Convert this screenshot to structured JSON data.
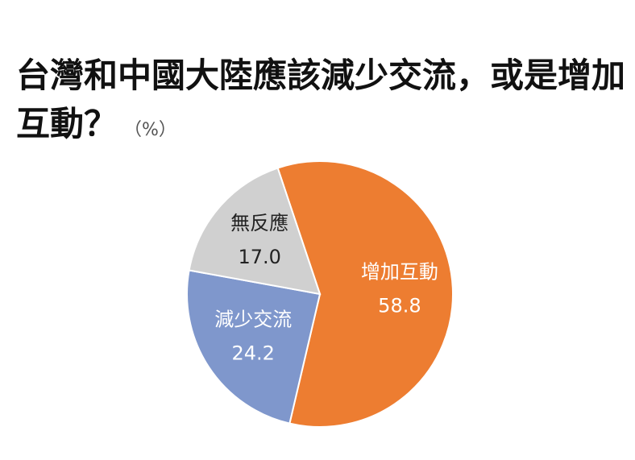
{
  "chart_data": {
    "type": "pie",
    "title": "台灣和中國大陸應該減少交流，或是增加互動？",
    "subtitle": "（%）",
    "categories": [
      "增加互動",
      "減少交流",
      "無反應"
    ],
    "values": [
      58.8,
      24.2,
      17
    ],
    "value_labels": [
      "58.8",
      "24.2",
      "17.0"
    ],
    "colors": [
      "#ed7d31",
      "#7f97cc",
      "#d0d0d0"
    ],
    "label_colors": [
      "#ffffff",
      "#ffffff",
      "#222222"
    ]
  }
}
